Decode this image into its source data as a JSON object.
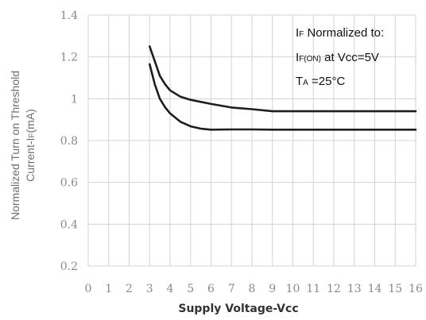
{
  "chart_data": {
    "type": "line",
    "xlabel": "Supply Voltage-Vcc",
    "ylabel_line1": "Normalized Turn on Threshold",
    "ylabel_line2": "Current-I",
    "ylabel_sub": "F",
    "ylabel_tail": "(mA)",
    "xlim": [
      0,
      16
    ],
    "ylim": [
      0.2,
      1.4
    ],
    "x_ticks": [
      "0",
      "1",
      "2",
      "3",
      "4",
      "5",
      "6",
      "7",
      "8",
      "9",
      "10",
      "11",
      "12",
      "13",
      "14",
      "15",
      "16"
    ],
    "y_ticks": [
      "0.2",
      "0.4",
      "0.6",
      "0.8",
      "1",
      "1.2",
      "1.4"
    ],
    "grid": true,
    "annotation": {
      "line1_main": "I",
      "line1_sub": "F",
      "line1_tail": " Normalized to:",
      "line2_main": "I",
      "line2_sub": "F(ON)",
      "line2_tail": " at Vcc=5V",
      "line3_main": "T",
      "line3_sub": "A",
      "line3_tail": " =25°C"
    },
    "series": [
      {
        "x": [
          3,
          3.25,
          3.5,
          3.75,
          4,
          4.5,
          5,
          5.5,
          6,
          7,
          8,
          9,
          10,
          12,
          14,
          16
        ],
        "y": [
          1.25,
          1.18,
          1.11,
          1.07,
          1.04,
          1.01,
          0.995,
          0.985,
          0.975,
          0.958,
          0.95,
          0.94,
          0.94,
          0.94,
          0.94,
          0.94
        ]
      },
      {
        "x": [
          3,
          3.25,
          3.5,
          3.75,
          4,
          4.5,
          5,
          5.5,
          6,
          7,
          8,
          9,
          10,
          12,
          14,
          16
        ],
        "y": [
          1.165,
          1.07,
          1.0,
          0.96,
          0.93,
          0.89,
          0.868,
          0.857,
          0.852,
          0.853,
          0.853,
          0.852,
          0.852,
          0.852,
          0.852,
          0.852
        ]
      }
    ]
  }
}
